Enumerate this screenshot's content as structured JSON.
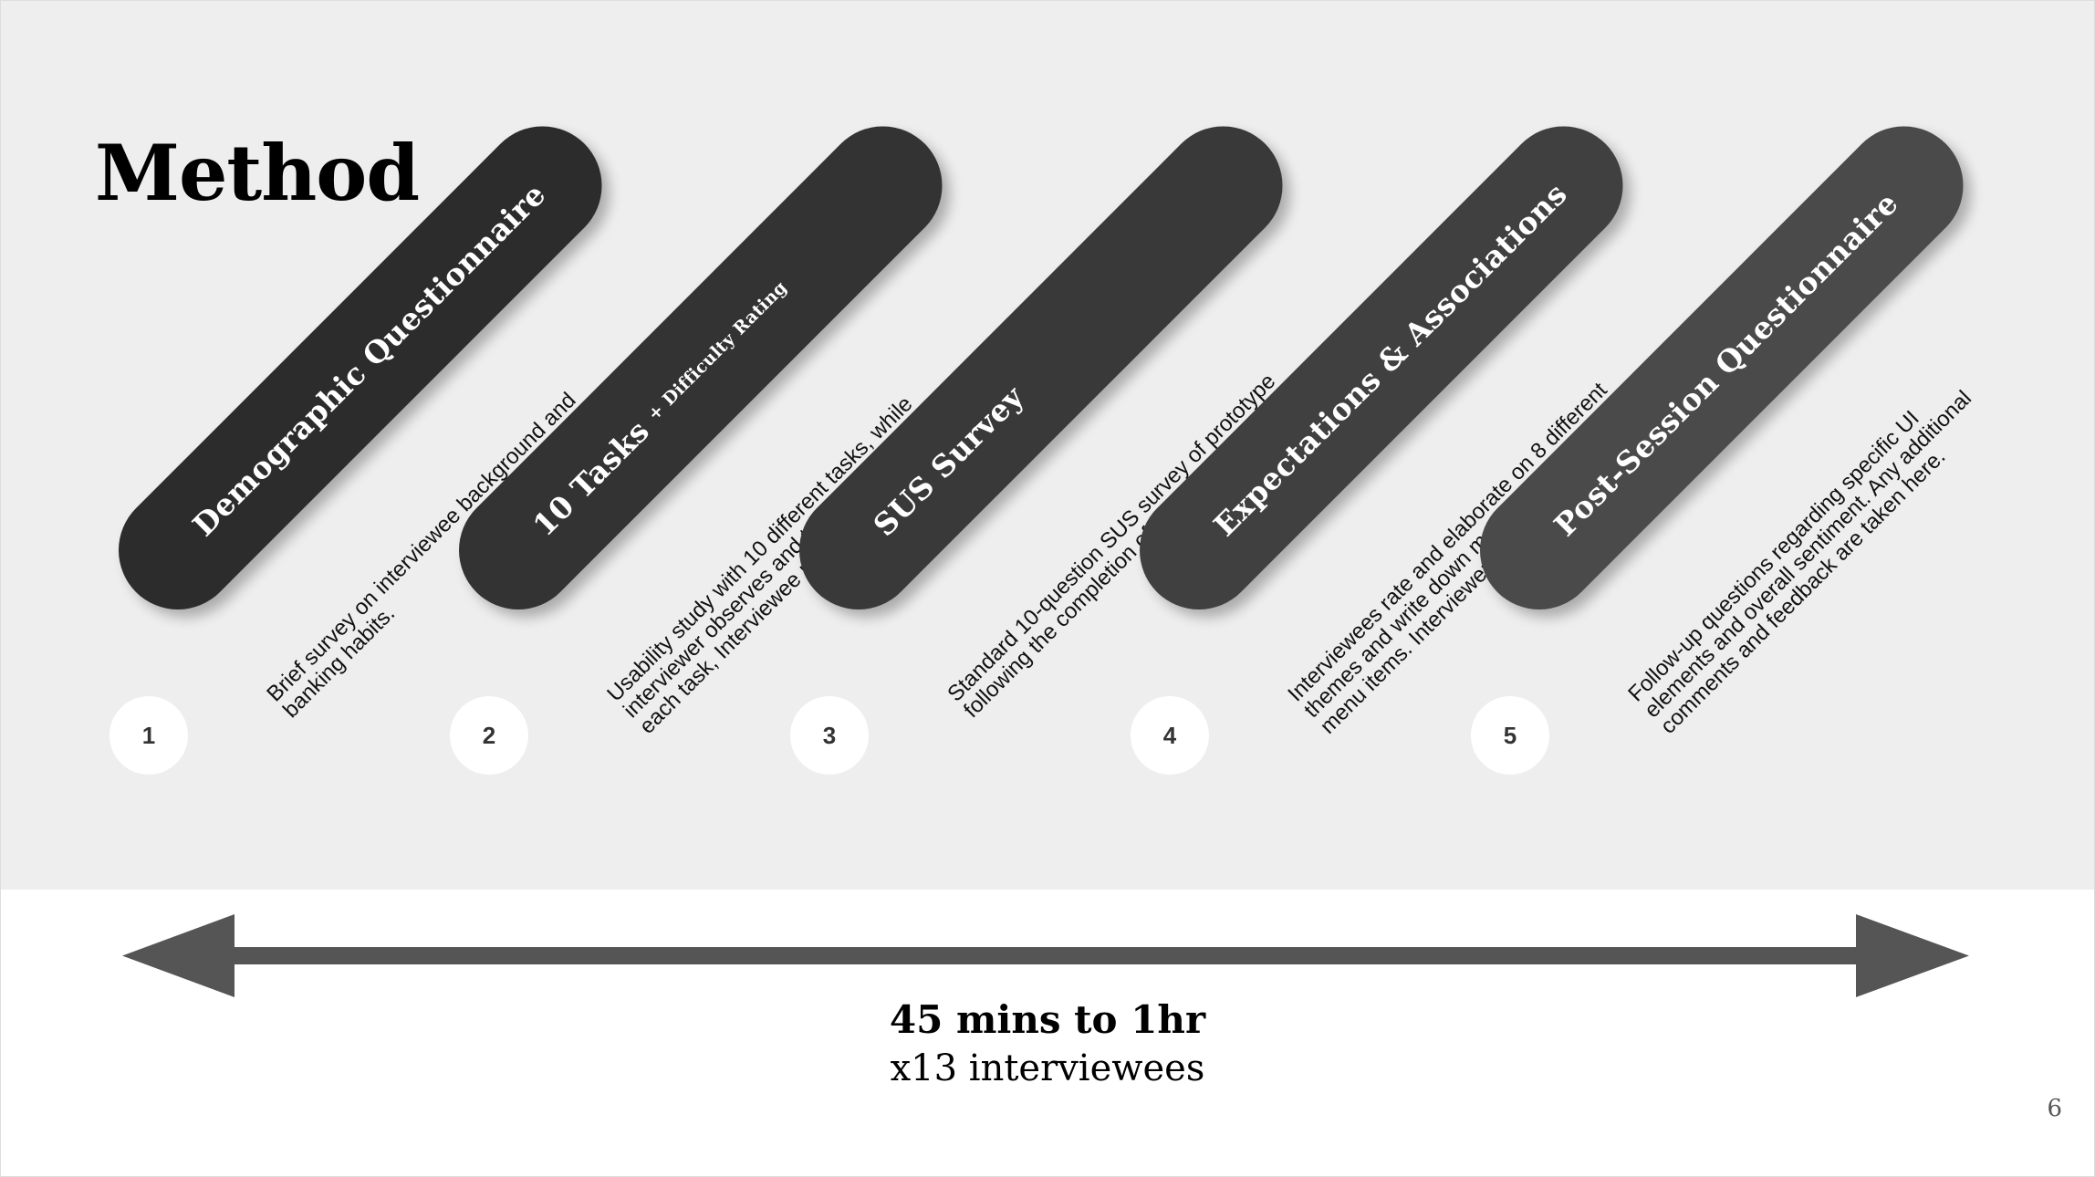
{
  "slide": {
    "title": "Method",
    "page_number": "6"
  },
  "steps": [
    {
      "number": "1",
      "title": "Demographic Questionnaire",
      "subtitle": "",
      "description": "Brief survey on interviewee background and banking habits.",
      "color": "#2c2c2c"
    },
    {
      "number": "2",
      "title": "10 Tasks",
      "subtitle": "+ Difficulty Rating",
      "description": "Usability study with 10 different tasks, while interviewer observes and takes notes. Following each task, Interviewee rates difficulty.",
      "color": "#333333"
    },
    {
      "number": "3",
      "title": "SUS Survey",
      "subtitle": "",
      "description": "Standard 10-question SUS survey of prototype following the completion of the 10 tasks.",
      "color": "#393939"
    },
    {
      "number": "4",
      "title": "Expectations & Associations",
      "subtitle": "",
      "description": "Interviewees rate and elaborate on 8 different themes and write down mental associations of menu items. Interviewers also take notes.",
      "color": "#404040"
    },
    {
      "number": "5",
      "title": "Post-Session Questionnaire",
      "subtitle": "",
      "description": "Follow-up questions regarding specific UI elements and overall sentiment. Any additional comments and feedback are taken here.",
      "color": "#4a4a4a"
    }
  ],
  "timeline": {
    "duration": "45 mins to 1hr",
    "participants": "x13 interviewees",
    "arrow_color": "#555555"
  }
}
